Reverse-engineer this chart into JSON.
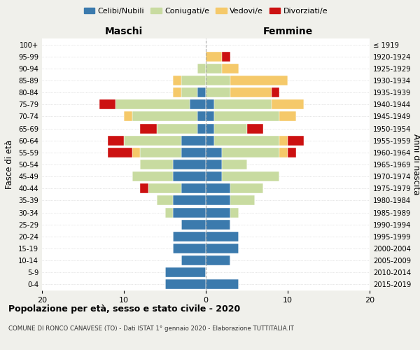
{
  "age_groups_bottom_to_top": [
    "0-4",
    "5-9",
    "10-14",
    "15-19",
    "20-24",
    "25-29",
    "30-34",
    "35-39",
    "40-44",
    "45-49",
    "50-54",
    "55-59",
    "60-64",
    "65-69",
    "70-74",
    "75-79",
    "80-84",
    "85-89",
    "90-94",
    "95-99",
    "100+"
  ],
  "birth_years_bottom_to_top": [
    "2015-2019",
    "2010-2014",
    "2005-2009",
    "2000-2004",
    "1995-1999",
    "1990-1994",
    "1985-1989",
    "1980-1984",
    "1975-1979",
    "1970-1974",
    "1965-1969",
    "1960-1964",
    "1955-1959",
    "1950-1954",
    "1945-1949",
    "1940-1944",
    "1935-1939",
    "1930-1934",
    "1925-1929",
    "1920-1924",
    "≤ 1919"
  ],
  "colors": {
    "celibe": "#3b7aad",
    "coniugato": "#c8dba0",
    "vedovo": "#f5c96a",
    "divorziato": "#cc1111"
  },
  "males_bottom_to_top": {
    "celibe": [
      5,
      5,
      3,
      4,
      4,
      3,
      4,
      4,
      3,
      4,
      4,
      3,
      3,
      1,
      1,
      2,
      1,
      0,
      0,
      0,
      0
    ],
    "coniugato": [
      0,
      0,
      0,
      0,
      0,
      0,
      1,
      2,
      4,
      5,
      4,
      5,
      7,
      5,
      8,
      9,
      2,
      3,
      1,
      0,
      0
    ],
    "vedovo": [
      0,
      0,
      0,
      0,
      0,
      0,
      0,
      0,
      0,
      0,
      0,
      1,
      0,
      0,
      1,
      0,
      1,
      1,
      0,
      0,
      0
    ],
    "divorziato": [
      0,
      0,
      0,
      0,
      0,
      0,
      0,
      0,
      1,
      0,
      0,
      3,
      2,
      2,
      0,
      2,
      0,
      0,
      0,
      0,
      0
    ]
  },
  "females_bottom_to_top": {
    "nubile": [
      4,
      0,
      3,
      4,
      4,
      3,
      3,
      3,
      3,
      2,
      2,
      2,
      1,
      1,
      1,
      1,
      0,
      0,
      0,
      0,
      0
    ],
    "coniugata": [
      0,
      0,
      0,
      0,
      0,
      0,
      1,
      3,
      4,
      7,
      3,
      7,
      8,
      4,
      8,
      7,
      3,
      3,
      2,
      0,
      0
    ],
    "vedova": [
      0,
      0,
      0,
      0,
      0,
      0,
      0,
      0,
      0,
      0,
      0,
      1,
      1,
      0,
      2,
      4,
      5,
      7,
      2,
      2,
      0
    ],
    "divorziata": [
      0,
      0,
      0,
      0,
      0,
      0,
      0,
      0,
      0,
      0,
      0,
      1,
      2,
      2,
      0,
      0,
      1,
      0,
      0,
      1,
      0
    ]
  },
  "xlim": 20,
  "title": "Popolazione per età, sesso e stato civile - 2020",
  "subtitle": "COMUNE DI RONCO CANAVESE (TO) - Dati ISTAT 1° gennaio 2020 - Elaborazione TUTTITALIA.IT",
  "ylabel_left": "Fasce di età",
  "ylabel_right": "Anni di nascita",
  "xlabel_left": "Maschi",
  "xlabel_right": "Femmine",
  "bg_color": "#f0f0eb",
  "plot_bg": "#ffffff"
}
